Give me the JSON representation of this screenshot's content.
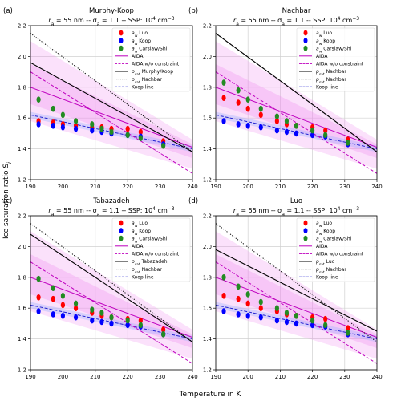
{
  "figure": {
    "ylabel": "Ice saturation ratio S",
    "ylabel_sub": "i",
    "xlabel": "Temperature in K",
    "subtitle_parts": [
      "r",
      "a",
      " = 55 nm -- σ",
      "a",
      " = 1.1 -- SSP: 10",
      "4",
      " cm",
      "−3"
    ]
  },
  "legend": [
    {
      "label": "a",
      "sub": "w",
      "tail": " Luo",
      "kind": "marker",
      "color": "#ff0000"
    },
    {
      "label": "a",
      "sub": "w",
      "tail": " Koop",
      "kind": "marker",
      "color": "#0000ff"
    },
    {
      "label": "a",
      "sub": "w",
      "tail": " Carslaw/Shi",
      "kind": "marker",
      "color": "#228b22"
    },
    {
      "label": "AIDA",
      "sub": "",
      "tail": "",
      "kind": "solid",
      "color": "#bf00bf"
    },
    {
      "label": "AIDA w/o constraint",
      "sub": "",
      "tail": "",
      "kind": "dashed",
      "color": "#bf00bf"
    },
    {
      "label": "p",
      "sub": "sat",
      "tail": "",
      "kind": "solid",
      "color": "#000000"
    },
    {
      "label": "p",
      "sub": "sat",
      "tail": " Nachbar",
      "kind": "dotted",
      "color": "#000000"
    },
    {
      "label": "Koop line",
      "sub": "",
      "tail": "",
      "kind": "dashed",
      "color": "#1f1fd0"
    }
  ],
  "chart_data": [
    {
      "type": "scatter",
      "panel": "(a)",
      "title": "Murphy-Koop",
      "psat_label": " Murphy/Koop",
      "xlim": [
        190,
        240
      ],
      "ylim": [
        1.2,
        2.2
      ],
      "xticks": [
        190,
        200,
        210,
        220,
        230,
        240
      ],
      "yticks": [
        1.2,
        1.4,
        1.6,
        1.8,
        2.0,
        2.2
      ],
      "grid": true,
      "legend_position": "top-right",
      "series": [
        {
          "name": "aw Luo",
          "x": [
            192.5,
            197,
            200,
            204,
            209,
            212,
            215,
            220,
            224,
            231
          ],
          "y": [
            1.58,
            1.57,
            1.56,
            1.55,
            1.54,
            1.54,
            1.53,
            1.53,
            1.51,
            1.45
          ]
        },
        {
          "name": "aw Koop",
          "x": [
            192.5,
            197,
            200,
            204,
            209,
            212,
            215,
            220,
            224,
            231
          ],
          "y": [
            1.56,
            1.55,
            1.54,
            1.53,
            1.52,
            1.51,
            1.5,
            1.49,
            1.48,
            1.43
          ]
        },
        {
          "name": "aw Carslaw/Shi",
          "x": [
            192.5,
            197,
            200,
            204,
            209,
            212,
            215,
            220,
            224,
            231
          ],
          "y": [
            1.72,
            1.66,
            1.62,
            1.58,
            1.56,
            1.53,
            1.51,
            1.49,
            1.47,
            1.42
          ]
        }
      ],
      "lines": {
        "aida": {
          "x": [
            190,
            240
          ],
          "y": [
            1.8,
            1.41
          ]
        },
        "aida_wo": {
          "x": [
            190,
            240
          ],
          "y": [
            1.9,
            1.24
          ]
        },
        "psat": {
          "x": [
            190,
            240
          ],
          "y": [
            1.96,
            1.38
          ]
        },
        "psat_nachbar": {
          "x": [
            190,
            240
          ],
          "y": [
            2.15,
            1.38
          ]
        },
        "koop": {
          "x": [
            190,
            240
          ],
          "y": [
            1.62,
            1.4
          ]
        }
      }
    },
    {
      "type": "scatter",
      "panel": "(b)",
      "title": "Nachbar",
      "psat_label": " Nachbar",
      "xlim": [
        190,
        240
      ],
      "ylim": [
        1.2,
        2.2
      ],
      "xticks": [
        190,
        200,
        210,
        220,
        230,
        240
      ],
      "yticks": [
        1.2,
        1.4,
        1.6,
        1.8,
        2.0,
        2.2
      ],
      "grid": true,
      "legend_position": "top-right",
      "series": [
        {
          "name": "aw Luo",
          "x": [
            192.5,
            197,
            200,
            204,
            209,
            212,
            215,
            220,
            224,
            231
          ],
          "y": [
            1.73,
            1.7,
            1.66,
            1.62,
            1.58,
            1.56,
            1.55,
            1.54,
            1.52,
            1.46
          ]
        },
        {
          "name": "aw Koop",
          "x": [
            192.5,
            197,
            200,
            204,
            209,
            212,
            215,
            220,
            224,
            231
          ],
          "y": [
            1.58,
            1.56,
            1.55,
            1.54,
            1.52,
            1.51,
            1.5,
            1.49,
            1.48,
            1.43
          ]
        },
        {
          "name": "aw Carslaw/Shi",
          "x": [
            192.5,
            197,
            200,
            204,
            209,
            212,
            215,
            220,
            224,
            231
          ],
          "y": [
            1.83,
            1.78,
            1.72,
            1.66,
            1.61,
            1.58,
            1.55,
            1.52,
            1.49,
            1.44
          ]
        }
      ],
      "lines": {
        "aida": {
          "x": [
            190,
            240
          ],
          "y": [
            1.8,
            1.41
          ]
        },
        "aida_wo": {
          "x": [
            190,
            240
          ],
          "y": [
            1.9,
            1.24
          ]
        },
        "psat": {
          "x": [
            190,
            240
          ],
          "y": [
            2.15,
            1.38
          ]
        },
        "psat_nachbar": {
          "x": [
            190,
            240
          ],
          "y": [
            2.15,
            1.38
          ]
        },
        "koop": {
          "x": [
            190,
            240
          ],
          "y": [
            1.62,
            1.4
          ]
        }
      }
    },
    {
      "type": "scatter",
      "panel": "(c)",
      "title": "Tabazadeh",
      "psat_label": " Tabazadeh",
      "xlim": [
        190,
        240
      ],
      "ylim": [
        1.2,
        2.2
      ],
      "xticks": [
        190,
        200,
        210,
        220,
        230,
        240
      ],
      "yticks": [
        1.2,
        1.4,
        1.6,
        1.8,
        2.0,
        2.2
      ],
      "grid": true,
      "legend_position": "top-right",
      "series": [
        {
          "name": "aw Luo",
          "x": [
            192.5,
            197,
            200,
            204,
            209,
            212,
            215,
            220,
            224,
            231
          ],
          "y": [
            1.67,
            1.66,
            1.62,
            1.6,
            1.57,
            1.55,
            1.54,
            1.53,
            1.52,
            1.46
          ]
        },
        {
          "name": "aw Koop",
          "x": [
            192.5,
            197,
            200,
            204,
            209,
            212,
            215,
            220,
            224,
            231
          ],
          "y": [
            1.58,
            1.56,
            1.55,
            1.54,
            1.52,
            1.51,
            1.5,
            1.49,
            1.48,
            1.43
          ]
        },
        {
          "name": "aw Carslaw/Shi",
          "x": [
            192.5,
            197,
            200,
            204,
            209,
            212,
            215,
            220,
            224,
            231
          ],
          "y": [
            1.79,
            1.73,
            1.68,
            1.63,
            1.59,
            1.57,
            1.54,
            1.52,
            1.49,
            1.43
          ]
        }
      ],
      "lines": {
        "aida": {
          "x": [
            190,
            240
          ],
          "y": [
            1.8,
            1.41
          ]
        },
        "aida_wo": {
          "x": [
            190,
            240
          ],
          "y": [
            1.9,
            1.24
          ]
        },
        "psat": {
          "x": [
            190,
            240
          ],
          "y": [
            2.08,
            1.38
          ]
        },
        "psat_nachbar": {
          "x": [
            190,
            240
          ],
          "y": [
            2.15,
            1.38
          ]
        },
        "koop": {
          "x": [
            190,
            240
          ],
          "y": [
            1.62,
            1.4
          ]
        }
      }
    },
    {
      "type": "scatter",
      "panel": "(d)",
      "title": "Luo",
      "psat_label": " Luo",
      "xlim": [
        190,
        240
      ],
      "ylim": [
        1.2,
        2.2
      ],
      "xticks": [
        190,
        200,
        210,
        220,
        230,
        240
      ],
      "yticks": [
        1.2,
        1.4,
        1.6,
        1.8,
        2.0,
        2.2
      ],
      "grid": true,
      "legend_position": "top-right",
      "series": [
        {
          "name": "aw Luo",
          "x": [
            192.5,
            197,
            200,
            204,
            209,
            212,
            215,
            220,
            224,
            231
          ],
          "y": [
            1.68,
            1.66,
            1.63,
            1.6,
            1.58,
            1.56,
            1.55,
            1.54,
            1.53,
            1.47
          ]
        },
        {
          "name": "aw Koop",
          "x": [
            192.5,
            197,
            200,
            204,
            209,
            212,
            215,
            220,
            224,
            231
          ],
          "y": [
            1.58,
            1.56,
            1.55,
            1.54,
            1.52,
            1.51,
            1.5,
            1.49,
            1.48,
            1.43
          ]
        },
        {
          "name": "aw Carslaw/Shi",
          "x": [
            192.5,
            197,
            200,
            204,
            209,
            212,
            215,
            220,
            224,
            231
          ],
          "y": [
            1.8,
            1.74,
            1.69,
            1.64,
            1.6,
            1.57,
            1.55,
            1.52,
            1.49,
            1.44
          ]
        }
      ],
      "lines": {
        "aida": {
          "x": [
            190,
            240
          ],
          "y": [
            1.8,
            1.41
          ]
        },
        "aida_wo": {
          "x": [
            190,
            240
          ],
          "y": [
            1.9,
            1.24
          ]
        },
        "psat": {
          "x": [
            190,
            240
          ],
          "y": [
            1.98,
            1.45
          ]
        },
        "psat_nachbar": {
          "x": [
            190,
            240
          ],
          "y": [
            2.15,
            1.38
          ]
        },
        "koop": {
          "x": [
            190,
            240
          ],
          "y": [
            1.62,
            1.4
          ]
        }
      }
    }
  ]
}
